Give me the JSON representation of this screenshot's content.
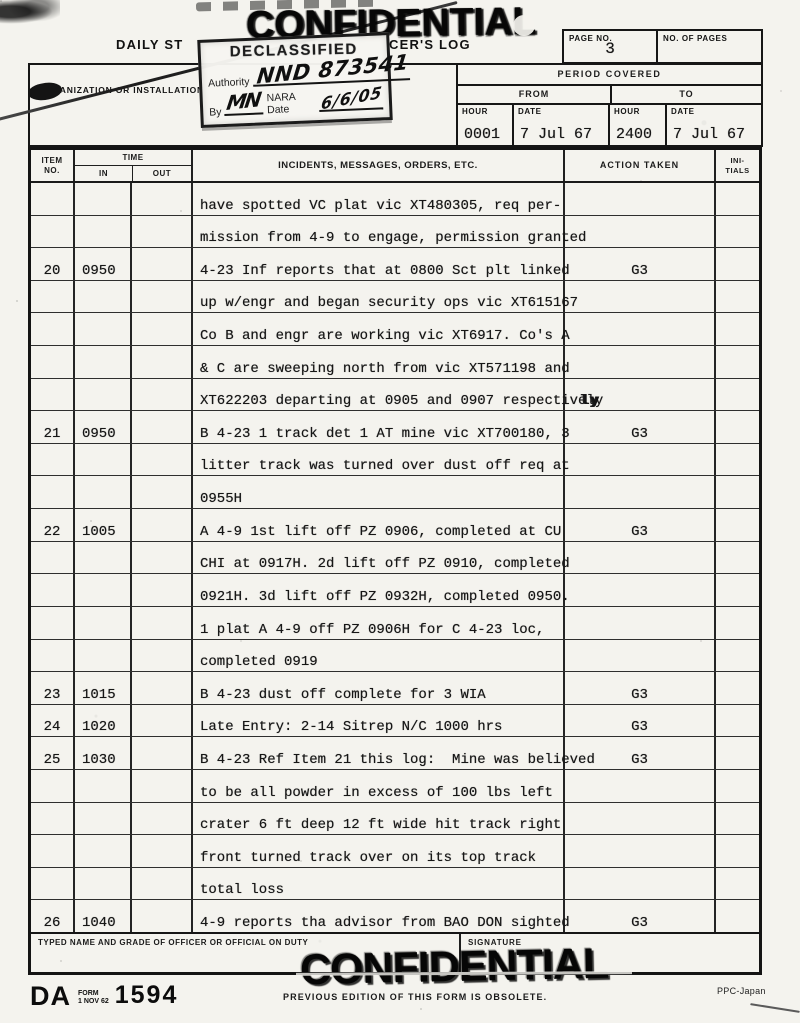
{
  "stamps": {
    "confidential_top": "CONFIDENTIAL",
    "confidential_bottom": "CONFIDENTIAL",
    "declassified": {
      "title": "DECLASSIFIED",
      "authority_label": "Authority",
      "authority_value": "NND 873541",
      "by_label": "By",
      "by_initials": "MN",
      "nara_date_label": "NARA Date",
      "date_value": "6/6/05"
    }
  },
  "header": {
    "title_left": "DAILY ST",
    "title_right": "CER'S LOG",
    "organization_label": "ORGANIZATION OR INSTALLATION",
    "page_no_label": "PAGE NO.",
    "page_no_value": "3",
    "no_of_pages_label": "NO. OF PAGES",
    "no_of_pages_value": "",
    "period": {
      "title": "PERIOD COVERED",
      "from_label": "FROM",
      "to_label": "TO",
      "hour_label": "HOUR",
      "date_label": "DATE",
      "from_hour": "0001",
      "from_date": "7 Jul 67",
      "to_hour": "2400",
      "to_date": "7 Jul 67"
    }
  },
  "log_table": {
    "headers": {
      "item_line1": "ITEM",
      "item_line2": "NO.",
      "time": "TIME",
      "in": "IN",
      "out": "OUT",
      "incidents": "INCIDENTS, MESSAGES, ORDERS, ETC.",
      "action": "ACTION TAKEN",
      "initials_line1": "INI-",
      "initials_line2": "TIALS"
    },
    "rows": [
      {
        "item": "",
        "in": "",
        "out": "",
        "text": "have spotted VC plat vic XT480305, req per-",
        "action": "",
        "initials": ""
      },
      {
        "item": "",
        "in": "",
        "out": "",
        "text": "mission from 4-9 to engage, permission granted",
        "action": "",
        "initials": ""
      },
      {
        "item": "20",
        "in": "0950",
        "out": "",
        "text": "4-23 Inf reports that at 0800 Sct plt linked",
        "action": "G3",
        "initials": ""
      },
      {
        "item": "",
        "in": "",
        "out": "",
        "text": "up w/engr and began security ops vic XT615167",
        "action": "",
        "initials": ""
      },
      {
        "item": "",
        "in": "",
        "out": "",
        "text": "Co B and engr are working vic XT6917. Co's A",
        "action": "",
        "initials": ""
      },
      {
        "item": "",
        "in": "",
        "out": "",
        "text": "& C are sweeping north from vic XT571198 and",
        "action": "",
        "initials": ""
      },
      {
        "item": "",
        "in": "",
        "out": "",
        "text": "XT622203 departing at 0905 and 0907 respectively",
        "action": "",
        "initials": "",
        "overstrike": "ly"
      },
      {
        "item": "21",
        "in": "0950",
        "out": "",
        "text": "B 4-23 1 track det 1 AT mine vic XT700180, 3",
        "action": "G3",
        "initials": ""
      },
      {
        "item": "",
        "in": "",
        "out": "",
        "text": "litter track was turned over dust off req at",
        "action": "",
        "initials": ""
      },
      {
        "item": "",
        "in": "",
        "out": "",
        "text": "0955H",
        "action": "",
        "initials": ""
      },
      {
        "item": "22",
        "in": "1005",
        "out": "",
        "text": "A 4-9 1st lift off PZ 0906, completed at CU",
        "action": "G3",
        "initials": ""
      },
      {
        "item": "",
        "in": "",
        "out": "",
        "text": "CHI at 0917H. 2d lift off PZ 0910, completed",
        "action": "",
        "initials": ""
      },
      {
        "item": "",
        "in": "",
        "out": "",
        "text": "0921H. 3d lift off PZ 0932H, completed 0950.",
        "action": "",
        "initials": ""
      },
      {
        "item": "",
        "in": "",
        "out": "",
        "text": "1 plat A 4-9 off PZ 0906H for C 4-23 loc,",
        "action": "",
        "initials": ""
      },
      {
        "item": "",
        "in": "",
        "out": "",
        "text": "completed 0919",
        "action": "",
        "initials": ""
      },
      {
        "item": "23",
        "in": "1015",
        "out": "",
        "text": "B 4-23 dust off complete for 3 WIA",
        "action": "G3",
        "initials": ""
      },
      {
        "item": "24",
        "in": "1020",
        "out": "",
        "text": "Late Entry: 2-14 Sitrep N/C 1000 hrs",
        "action": "G3",
        "initials": ""
      },
      {
        "item": "25",
        "in": "1030",
        "out": "",
        "text": "B 4-23 Ref Item 21 this log:  Mine was believed",
        "action": "G3",
        "initials": ""
      },
      {
        "item": "",
        "in": "",
        "out": "",
        "text": "to be all powder in excess of 100 lbs left",
        "action": "",
        "initials": ""
      },
      {
        "item": "",
        "in": "",
        "out": "",
        "text": "crater 6 ft deep 12 ft wide hit track right",
        "action": "",
        "initials": ""
      },
      {
        "item": "",
        "in": "",
        "out": "",
        "text": "front turned track over on its top track",
        "action": "",
        "initials": ""
      },
      {
        "item": "",
        "in": "",
        "out": "",
        "text": "total loss",
        "action": "",
        "initials": ""
      },
      {
        "item": "26",
        "in": "1040",
        "out": "",
        "text": "4-9 reports tha advisor from BAO DON sighted",
        "action": "G3",
        "initials": ""
      }
    ]
  },
  "signature": {
    "typed_name_label": "TYPED NAME AND GRADE OF OFFICER OR OFFICIAL ON DUTY",
    "signature_label": "SIGNATURE"
  },
  "footer": {
    "da": "DA",
    "form_word": "FORM",
    "form_date": "1 NOV 62",
    "form_number": "1594",
    "obsolete_note": "PREVIOUS EDITION OF THIS FORM IS OBSOLETE.",
    "printer_code": "PPC-Japan"
  }
}
